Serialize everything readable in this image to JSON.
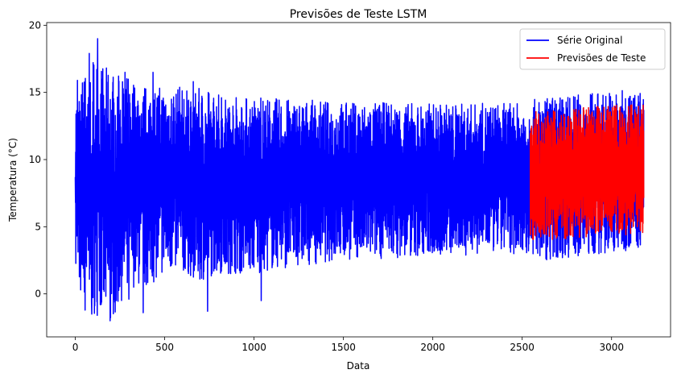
{
  "chart_data": {
    "type": "line",
    "title": "Previsões de Teste LSTM",
    "xlabel": "Data",
    "ylabel": "Temperatura (°C)",
    "xlim": [
      -160,
      3330
    ],
    "ylim": [
      -3.2,
      20.2
    ],
    "xticks": [
      0,
      500,
      1000,
      1500,
      2000,
      2500,
      3000
    ],
    "yticks": [
      0,
      5,
      10,
      15,
      20
    ],
    "grid": false,
    "legend_position": "top-right",
    "series": [
      {
        "name": "Série Original",
        "color": "#0000ff",
        "x_range": [
          0,
          3180
        ],
        "n_points": 3181,
        "min": -2.0,
        "max": 19.0,
        "envelope": [
          {
            "x": 0,
            "low": 1.0,
            "high": 15.0
          },
          {
            "x": 100,
            "low": -1.5,
            "high": 17.9
          },
          {
            "x": 200,
            "low": -2.0,
            "high": 16.5
          },
          {
            "x": 300,
            "low": 0.5,
            "high": 16.3
          },
          {
            "x": 400,
            "low": 0.5,
            "high": 15.5
          },
          {
            "x": 500,
            "low": 1.5,
            "high": 15.5
          },
          {
            "x": 600,
            "low": 1.5,
            "high": 15.5
          },
          {
            "x": 700,
            "low": 1.0,
            "high": 15.3
          },
          {
            "x": 800,
            "low": 1.5,
            "high": 15.0
          },
          {
            "x": 900,
            "low": 1.5,
            "high": 14.8
          },
          {
            "x": 1000,
            "low": 1.5,
            "high": 14.7
          },
          {
            "x": 1200,
            "low": 2.0,
            "high": 14.5
          },
          {
            "x": 1500,
            "low": 2.5,
            "high": 14.3
          },
          {
            "x": 2000,
            "low": 2.8,
            "high": 14.2
          },
          {
            "x": 2500,
            "low": 3.0,
            "high": 14.2
          },
          {
            "x": 2600,
            "low": 2.5,
            "high": 14.6
          },
          {
            "x": 3000,
            "low": 3.0,
            "high": 15.2
          },
          {
            "x": 3180,
            "low": 3.5,
            "high": 15.1
          }
        ],
        "spikes": [
          {
            "x": 12,
            "y": 15.9
          },
          {
            "x": 30,
            "y": 0.3
          },
          {
            "x": 55,
            "y": -1.2
          },
          {
            "x": 78,
            "y": 17.9
          },
          {
            "x": 92,
            "y": -1.5
          },
          {
            "x": 125,
            "y": 19.0
          },
          {
            "x": 140,
            "y": -0.8
          },
          {
            "x": 195,
            "y": -2.0
          },
          {
            "x": 230,
            "y": -0.5
          },
          {
            "x": 278,
            "y": 16.5
          },
          {
            "x": 300,
            "y": -0.4
          },
          {
            "x": 380,
            "y": -1.4
          },
          {
            "x": 435,
            "y": 16.5
          },
          {
            "x": 660,
            "y": 15.8
          },
          {
            "x": 740,
            "y": -1.3
          },
          {
            "x": 1040,
            "y": -0.5
          }
        ]
      },
      {
        "name": "Previsões de Teste",
        "color": "#ff0000",
        "x_range": [
          2545,
          3180
        ],
        "n_points": 636,
        "min": 3.5,
        "max": 14.3,
        "envelope": [
          {
            "x": 2545,
            "low": 4.0,
            "high": 13.7
          },
          {
            "x": 2700,
            "low": 4.0,
            "high": 13.6
          },
          {
            "x": 2850,
            "low": 4.2,
            "high": 13.9
          },
          {
            "x": 3000,
            "low": 4.3,
            "high": 14.1
          },
          {
            "x": 3180,
            "low": 4.5,
            "high": 14.3
          }
        ]
      }
    ]
  }
}
